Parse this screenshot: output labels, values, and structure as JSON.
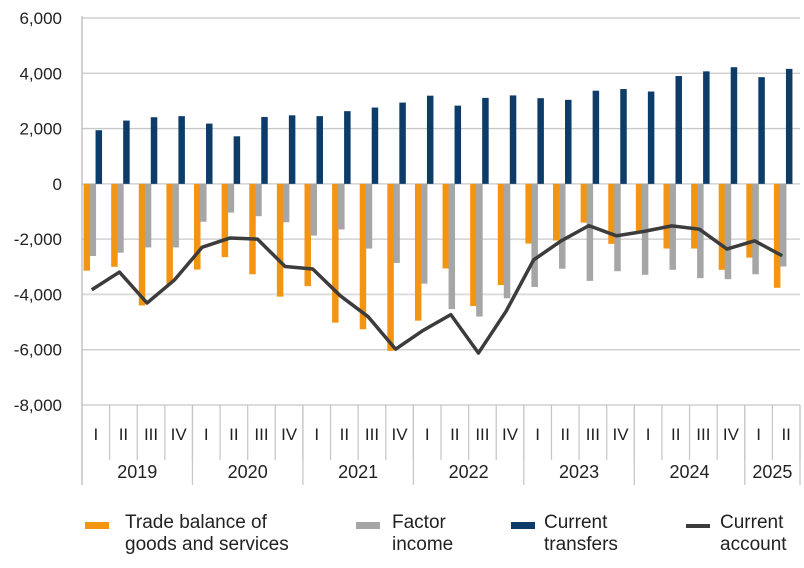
{
  "chart_data": {
    "type": "bar",
    "ylim": [
      -8000,
      6000
    ],
    "yticks": [
      "6,000",
      "4,000",
      "2,000",
      "0",
      "-2,000",
      "-4,000",
      "-6,000",
      "-8,000"
    ],
    "ytick_values": [
      6000,
      4000,
      2000,
      0,
      -2000,
      -4000,
      -6000,
      -8000
    ],
    "grid": true,
    "legend_position": "bottom",
    "quarters": [
      "I",
      "II",
      "III",
      "IV",
      "I",
      "II",
      "III",
      "IV",
      "I",
      "II",
      "III",
      "IV",
      "I",
      "II",
      "III",
      "IV",
      "I",
      "II",
      "III",
      "IV",
      "I",
      "II",
      "III",
      "IV",
      "I",
      "II"
    ],
    "years": [
      {
        "label": "2019",
        "quarters": 4
      },
      {
        "label": "2020",
        "quarters": 4
      },
      {
        "label": "2021",
        "quarters": 4
      },
      {
        "label": "2022",
        "quarters": 4
      },
      {
        "label": "2023",
        "quarters": 4
      },
      {
        "label": "2024",
        "quarters": 4
      },
      {
        "label": "2025",
        "quarters": 2
      }
    ],
    "series": [
      {
        "name": "Trade balance of\ngoods and services",
        "type": "bar",
        "color": "#F39512",
        "values": [
          -3140,
          -3000,
          -4400,
          -3630,
          -3100,
          -2650,
          -3270,
          -4080,
          -3700,
          -5020,
          -5260,
          -6040,
          -4950,
          -3060,
          -4420,
          -3660,
          -2160,
          -2050,
          -1400,
          -2170,
          -1760,
          -2340,
          -2340,
          -3110,
          -2670,
          -3760
        ]
      },
      {
        "name": "Factor\nincome",
        "type": "bar",
        "color": "#A6A6A6",
        "values": [
          -2610,
          -2490,
          -2300,
          -2300,
          -1370,
          -1040,
          -1170,
          -1390,
          -1870,
          -1650,
          -2340,
          -2860,
          -3610,
          -4530,
          -4800,
          -4140,
          -3730,
          -3070,
          -3510,
          -3160,
          -3290,
          -3110,
          -3410,
          -3450,
          -3270,
          -2990
        ]
      },
      {
        "name": "Current\ntransfers",
        "type": "bar",
        "color": "#0D3C69",
        "values": [
          1940,
          2290,
          2410,
          2450,
          2180,
          1720,
          2420,
          2480,
          2450,
          2630,
          2760,
          2940,
          3190,
          2830,
          3110,
          3200,
          3100,
          3040,
          3370,
          3430,
          3340,
          3900,
          4070,
          4220,
          3860,
          4160
        ]
      },
      {
        "name": "Current\naccount",
        "type": "line",
        "color": "#3C3C3C",
        "values": [
          -3830,
          -3190,
          -4310,
          -3470,
          -2290,
          -1960,
          -2000,
          -2990,
          -3080,
          -4050,
          -4800,
          -5980,
          -5300,
          -4730,
          -6120,
          -4610,
          -2750,
          -2060,
          -1510,
          -1880,
          -1720,
          -1520,
          -1640,
          -2360,
          -2060,
          -2600
        ]
      }
    ]
  }
}
